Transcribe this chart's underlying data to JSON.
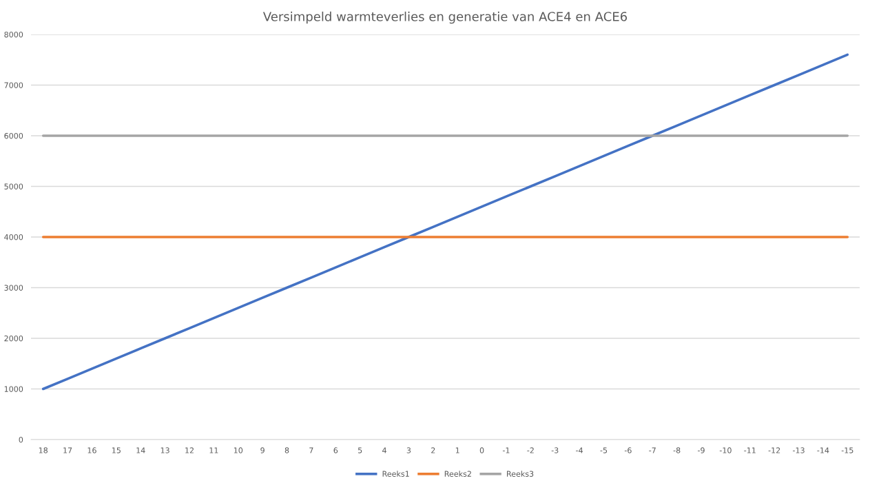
{
  "chart_data": {
    "type": "line",
    "title": "Versimpeld warmteverlies en generatie van ACE4 en ACE6",
    "categories": [
      "18",
      "17",
      "16",
      "15",
      "14",
      "13",
      "12",
      "11",
      "10",
      "9",
      "8",
      "7",
      "6",
      "5",
      "4",
      "3",
      "2",
      "1",
      "0",
      "-1",
      "-2",
      "-3",
      "-4",
      "-5",
      "-6",
      "-7",
      "-8",
      "-9",
      "-10",
      "-11",
      "-12",
      "-13",
      "-14",
      "-15"
    ],
    "series": [
      {
        "name": "Reeks1",
        "color": "#4472c4",
        "values": [
          1000,
          1200,
          1400,
          1600,
          1800,
          2000,
          2200,
          2400,
          2600,
          2800,
          3000,
          3200,
          3400,
          3600,
          3800,
          4000,
          4200,
          4400,
          4600,
          4800,
          5000,
          5200,
          5400,
          5600,
          5800,
          6000,
          6200,
          6400,
          6600,
          6800,
          7000,
          7200,
          7400,
          7600
        ]
      },
      {
        "name": "Reeks2",
        "color": "#ed7d31",
        "values": [
          4000,
          4000,
          4000,
          4000,
          4000,
          4000,
          4000,
          4000,
          4000,
          4000,
          4000,
          4000,
          4000,
          4000,
          4000,
          4000,
          4000,
          4000,
          4000,
          4000,
          4000,
          4000,
          4000,
          4000,
          4000,
          4000,
          4000,
          4000,
          4000,
          4000,
          4000,
          4000,
          4000,
          4000
        ]
      },
      {
        "name": "Reeks3",
        "color": "#a5a5a5",
        "values": [
          6000,
          6000,
          6000,
          6000,
          6000,
          6000,
          6000,
          6000,
          6000,
          6000,
          6000,
          6000,
          6000,
          6000,
          6000,
          6000,
          6000,
          6000,
          6000,
          6000,
          6000,
          6000,
          6000,
          6000,
          6000,
          6000,
          6000,
          6000,
          6000,
          6000,
          6000,
          6000,
          6000,
          6000
        ]
      }
    ],
    "ylim": [
      0,
      8000
    ],
    "yticks": [
      0,
      1000,
      2000,
      3000,
      4000,
      5000,
      6000,
      7000,
      8000
    ],
    "grid": "y",
    "legend": "bottom",
    "marker": "none",
    "line_style": "solid"
  }
}
